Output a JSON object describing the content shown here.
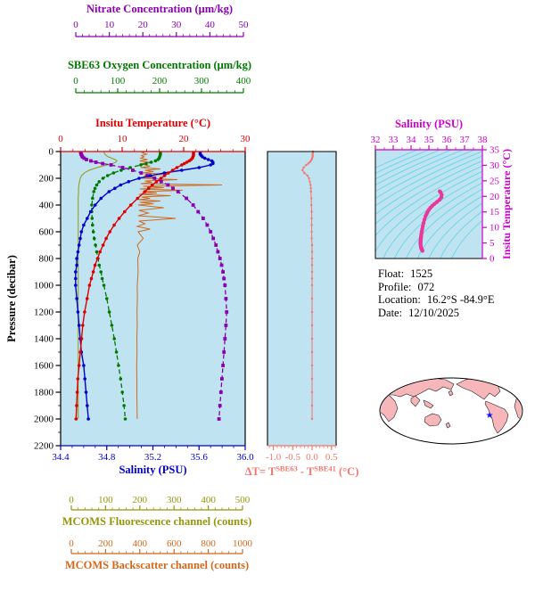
{
  "colors": {
    "nitrate": "#8b00b0",
    "oxygen": "#007a00",
    "temperature": "#dd0000",
    "salinity": "#0000cd",
    "fluorescence": "#96960a",
    "backscatter": "#d2691e",
    "delta_t": "#f4766e",
    "ts_axis": "#cc00cc",
    "ts_curve": "#e8389d",
    "plot_bg": "#bfe3f0",
    "contour": "#5ad4e6",
    "map_land": "#f6b6ba",
    "map_star": "#1414ff",
    "frame": "#000000"
  },
  "axes": {
    "nitrate": {
      "title": "Nitrate Concentration (μm/kg)",
      "ticks": [
        "0",
        "10",
        "20",
        "30",
        "40",
        "50"
      ],
      "range": [
        0,
        50
      ]
    },
    "oxygen": {
      "title": "SBE63 Oxygen Concentration (μm/kg)",
      "ticks": [
        "0",
        "100",
        "200",
        "300",
        "400"
      ],
      "range": [
        0,
        400
      ]
    },
    "temperature": {
      "title": "Insitu Temperature (°C)",
      "ticks": [
        "0",
        "10",
        "20",
        "30"
      ],
      "range": [
        0,
        30
      ]
    },
    "pressure": {
      "title": "Pressure (decibar)",
      "ticks": [
        "0",
        "200",
        "400",
        "600",
        "800",
        "1000",
        "1200",
        "1400",
        "1600",
        "1800",
        "2000",
        "2200"
      ],
      "range": [
        0,
        2200
      ]
    },
    "salinity": {
      "title": "Salinity (PSU)",
      "ticks": [
        "34.4",
        "34.8",
        "35.2",
        "35.6",
        "36.0"
      ],
      "range": [
        34.4,
        36.0
      ]
    },
    "fluorescence": {
      "title": "MCOMS Fluorescence channel (counts)",
      "ticks": [
        "0",
        "100",
        "200",
        "300",
        "400",
        "500"
      ],
      "range": [
        0,
        500
      ]
    },
    "backscatter": {
      "title": "MCOMS Backscatter channel (counts)",
      "ticks": [
        "0",
        "200",
        "400",
        "600",
        "800",
        "1000"
      ],
      "range": [
        0,
        1000
      ]
    },
    "delta_t": {
      "title_parts": [
        {
          "t": "ΔT= T"
        },
        {
          "t": "SBE63",
          "sup": true
        },
        {
          "t": " - T"
        },
        {
          "t": "SBE41",
          "sup": true
        },
        {
          "t": " (°C)"
        }
      ],
      "ticks": [
        "-1.0",
        "-0.5",
        "0.0",
        "0.5"
      ],
      "range": [
        -1.15,
        0.62
      ]
    },
    "ts_salinity": {
      "title": "Salinity (PSU)",
      "ticks": [
        "32",
        "33",
        "34",
        "35",
        "36",
        "37",
        "38"
      ],
      "range": [
        32,
        38
      ]
    },
    "ts_temperature": {
      "title": "Insitu Temperature (°C)",
      "ticks": [
        "0",
        "5",
        "10",
        "15",
        "20",
        "25",
        "30",
        "35"
      ],
      "range": [
        0,
        35
      ]
    }
  },
  "info": {
    "float_label": "Float:",
    "float_value": "1525",
    "profile_label": "Profile:",
    "profile_value": "072",
    "location_label": "Location:",
    "location_value": "16.2°S -84.9°E",
    "date_label": "Date:",
    "date_value": "12/10/2025"
  },
  "map": {
    "star_icon": "★"
  },
  "chart_data": [
    {
      "type": "line",
      "title": "Float profile vs pressure",
      "ylabel": "Pressure (decibar)",
      "ylim": [
        0,
        2200
      ],
      "pressure": [
        0,
        10,
        20,
        30,
        40,
        50,
        60,
        70,
        80,
        90,
        100,
        120,
        140,
        160,
        180,
        200,
        225,
        250,
        275,
        300,
        350,
        400,
        450,
        500,
        550,
        600,
        650,
        700,
        750,
        800,
        850,
        900,
        950,
        1000,
        1100,
        1200,
        1300,
        1400,
        1500,
        1600,
        1700,
        1800,
        1900,
        2000
      ],
      "series": [
        {
          "name": "MCOMS Fluorescence channel (counts)",
          "axis": "fluorescence",
          "values": [
            95,
            96,
            98,
            102,
            108,
            118,
            128,
            133,
            130,
            120,
            105,
            75,
            52,
            38,
            30,
            26,
            24,
            22,
            21,
            21,
            20,
            20,
            20,
            20,
            20,
            20,
            20,
            20,
            20,
            20,
            20,
            20,
            20,
            20,
            20,
            20,
            20,
            20,
            20,
            20,
            20,
            20,
            20,
            20
          ]
        },
        {
          "name": "MCOMS Backscatter channel (counts)",
          "axis": "backscatter",
          "pressure": [
            0,
            10,
            20,
            30,
            40,
            50,
            60,
            70,
            80,
            90,
            100,
            110,
            120,
            130,
            140,
            150,
            160,
            170,
            180,
            190,
            200,
            210,
            220,
            230,
            240,
            250,
            260,
            270,
            280,
            290,
            300,
            310,
            320,
            330,
            340,
            350,
            360,
            370,
            380,
            390,
            400,
            420,
            440,
            460,
            480,
            500,
            520,
            540,
            560,
            580,
            600,
            650,
            700,
            750,
            800,
            900,
            1000,
            1100,
            1200,
            1300,
            1400,
            1500,
            1600,
            1700,
            1800,
            1900,
            2000
          ],
          "values": [
            430,
            415,
            440,
            410,
            425,
            405,
            445,
            400,
            455,
            410,
            430,
            460,
            405,
            520,
            430,
            480,
            415,
            560,
            425,
            490,
            410,
            620,
            430,
            470,
            405,
            880,
            420,
            540,
            400,
            650,
            415,
            500,
            395,
            580,
            410,
            460,
            395,
            520,
            400,
            480,
            390,
            540,
            395,
            450,
            390,
            610,
            395,
            430,
            385,
            460,
            390,
            420,
            385,
            400,
            388,
            390,
            385,
            386,
            384,
            385,
            383,
            384,
            382,
            383,
            383,
            384,
            385
          ]
        },
        {
          "name": "SBE63 Oxygen Concentration (μm/kg)",
          "axis": "oxygen",
          "values": [
            202,
            202,
            202,
            201,
            200,
            199,
            196,
            190,
            180,
            168,
            155,
            130,
            108,
            90,
            76,
            65,
            56,
            50,
            46,
            43,
            40,
            38,
            38,
            39,
            40,
            42,
            44,
            47,
            50,
            53,
            56,
            60,
            63,
            67,
            74,
            80,
            86,
            92,
            97,
            102,
            107,
            111,
            115,
            118
          ]
        },
        {
          "name": "Nitrate Concentration (μm/kg)",
          "axis": "nitrate",
          "values": [
            1.5,
            1.5,
            1.6,
            1.8,
            2.0,
            2.5,
            3.2,
            4.5,
            6.0,
            8.0,
            10.5,
            14.0,
            17.0,
            19.5,
            21.5,
            23.5,
            25.5,
            27.5,
            29.0,
            30.5,
            33.0,
            35.0,
            36.5,
            38.0,
            39.2,
            40.2,
            41.0,
            41.8,
            42.4,
            43.0,
            43.5,
            43.9,
            44.2,
            44.5,
            44.8,
            45.0,
            44.8,
            44.5,
            44.2,
            43.9,
            43.6,
            43.3,
            43.0,
            42.7
          ]
        },
        {
          "name": "Salinity (PSU)",
          "axis": "salinity",
          "values": [
            35.61,
            35.61,
            35.61,
            35.62,
            35.63,
            35.65,
            35.68,
            35.71,
            35.72,
            35.72,
            35.7,
            35.6,
            35.45,
            35.3,
            35.18,
            35.08,
            34.99,
            34.92,
            34.87,
            34.82,
            34.75,
            34.7,
            34.66,
            34.63,
            34.6,
            34.58,
            34.57,
            34.56,
            34.55,
            34.54,
            34.54,
            34.53,
            34.53,
            34.53,
            34.54,
            34.55,
            34.56,
            34.57,
            34.58,
            34.6,
            34.61,
            34.62,
            34.63,
            34.64
          ]
        },
        {
          "name": "Insitu Temperature (°C)",
          "axis": "temperature",
          "values": [
            21.6,
            21.6,
            21.6,
            21.6,
            21.5,
            21.4,
            21.2,
            20.9,
            20.5,
            20.1,
            19.7,
            18.9,
            18.2,
            17.5,
            16.9,
            16.3,
            15.6,
            14.9,
            14.3,
            13.7,
            12.5,
            11.4,
            10.4,
            9.5,
            8.7,
            8.0,
            7.4,
            6.9,
            6.4,
            6.0,
            5.6,
            5.3,
            5.0,
            4.7,
            4.3,
            3.9,
            3.6,
            3.4,
            3.2,
            3.0,
            2.8,
            2.7,
            2.6,
            2.5
          ]
        }
      ]
    },
    {
      "type": "line",
      "title": "Temperature difference SBE63 minus SBE41",
      "xlim": [
        -1.15,
        0.62
      ],
      "pressure": [
        0,
        10,
        20,
        30,
        40,
        50,
        60,
        70,
        80,
        90,
        100,
        120,
        140,
        160,
        180,
        200,
        225,
        250,
        275,
        300,
        350,
        400,
        450,
        500,
        550,
        600,
        650,
        700,
        750,
        800,
        850,
        900,
        950,
        1000,
        1100,
        1200,
        1300,
        1400,
        1500,
        1600,
        1700,
        1800,
        1900,
        2000
      ],
      "values": [
        0.02,
        0.02,
        0.01,
        0.02,
        0.01,
        0.0,
        -0.01,
        -0.03,
        -0.06,
        -0.1,
        -0.15,
        -0.22,
        -0.25,
        -0.2,
        -0.12,
        -0.08,
        -0.06,
        -0.04,
        -0.03,
        -0.03,
        -0.02,
        -0.02,
        -0.01,
        -0.01,
        -0.01,
        -0.01,
        -0.01,
        0.0,
        0.0,
        0.0,
        0.0,
        0.0,
        0.0,
        0.0,
        0.0,
        0.0,
        0.0,
        0.0,
        0.0,
        0.0,
        0.0,
        0.0,
        0.0,
        0.0
      ]
    },
    {
      "type": "line",
      "title": "T-S diagram",
      "xlim": [
        32,
        38
      ],
      "ylim": [
        0,
        35
      ],
      "salinity": [
        35.61,
        35.65,
        35.72,
        35.7,
        35.6,
        35.45,
        35.3,
        35.18,
        35.08,
        34.99,
        34.92,
        34.87,
        34.82,
        34.75,
        34.7,
        34.66,
        34.63,
        34.6,
        34.58,
        34.57,
        34.56,
        34.55,
        34.54,
        34.54,
        34.53,
        34.53,
        34.53,
        34.54,
        34.55,
        34.56,
        34.57,
        34.58,
        34.6,
        34.61,
        34.62,
        34.63,
        34.64
      ],
      "temperature": [
        21.6,
        21.4,
        20.5,
        19.7,
        18.9,
        18.2,
        17.5,
        16.9,
        16.3,
        15.6,
        14.9,
        14.3,
        13.7,
        12.5,
        11.4,
        10.4,
        9.5,
        8.7,
        8.0,
        7.4,
        6.9,
        6.4,
        6.0,
        5.6,
        5.3,
        5.0,
        4.7,
        4.3,
        3.9,
        3.6,
        3.4,
        3.2,
        3.0,
        2.8,
        2.7,
        2.6,
        2.5
      ]
    }
  ]
}
